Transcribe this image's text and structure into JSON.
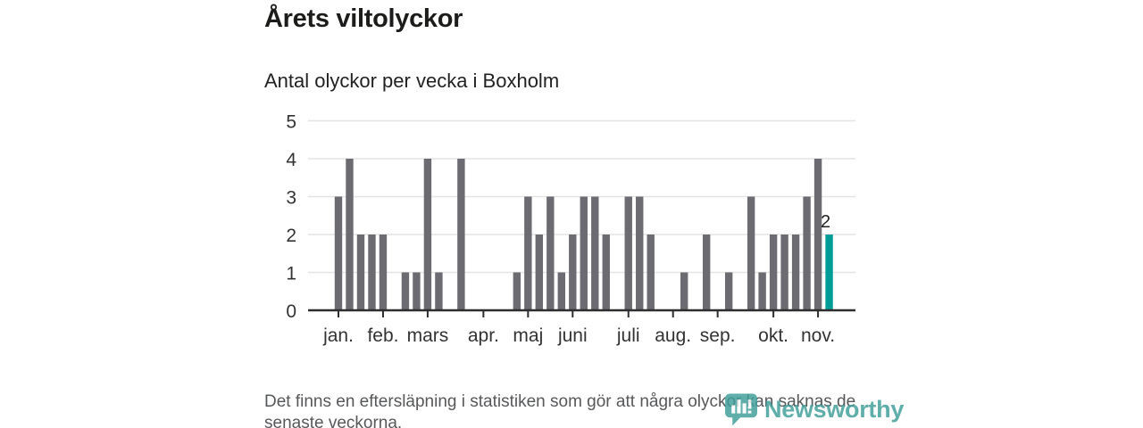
{
  "header": {
    "title": "Årets viltolyckor",
    "subtitle": "Antal olyckor per vecka i Boxholm"
  },
  "footer": {
    "note": "Det finns en eftersläpning i statistiken som gör att några olyckor kan saknas de senaste veckorna."
  },
  "brand": {
    "name": "Newsworthy",
    "icon": "newsworthy-bubble-chart-icon",
    "color": "#3f9e9a"
  },
  "chart_data": {
    "type": "bar",
    "title": "Årets viltolyckor",
    "subtitle": "Antal olyckor per vecka i Boxholm",
    "x_unit": "vecka (week of year)",
    "weeks": [
      1,
      2,
      3,
      4,
      5,
      6,
      7,
      8,
      9,
      10,
      11,
      12,
      13,
      14,
      15,
      16,
      17,
      18,
      19,
      20,
      21,
      22,
      23,
      24,
      25,
      26,
      27,
      28,
      29,
      30,
      31,
      32,
      33,
      34,
      35,
      36,
      37,
      38,
      39,
      40,
      41,
      42,
      43,
      44,
      45
    ],
    "values": [
      3,
      4,
      2,
      2,
      2,
      0,
      1,
      1,
      4,
      1,
      0,
      4,
      0,
      0,
      0,
      0,
      1,
      3,
      2,
      3,
      1,
      2,
      3,
      3,
      2,
      0,
      3,
      3,
      2,
      0,
      0,
      1,
      0,
      2,
      0,
      1,
      0,
      3,
      1,
      2,
      2,
      2,
      3,
      4,
      2
    ],
    "ylim": [
      0,
      5
    ],
    "yticks": [
      0,
      1,
      2,
      3,
      4,
      5
    ],
    "axis_weeks_total": 47,
    "grid": true,
    "legend": false,
    "month_ticks": [
      {
        "label": "jan.",
        "week": 1
      },
      {
        "label": "feb.",
        "week": 5
      },
      {
        "label": "mars",
        "week": 9
      },
      {
        "label": "apr.",
        "week": 14
      },
      {
        "label": "maj",
        "week": 18
      },
      {
        "label": "juni",
        "week": 22
      },
      {
        "label": "juli",
        "week": 27
      },
      {
        "label": "aug.",
        "week": 31
      },
      {
        "label": "sep.",
        "week": 35
      },
      {
        "label": "okt.",
        "week": 40
      },
      {
        "label": "nov.",
        "week": 44
      }
    ],
    "highlight": {
      "week": 45,
      "value": 2,
      "label": "2"
    },
    "colors": {
      "bar": "#6b6b71",
      "highlight": "#009c98",
      "grid": "#e4e4e4",
      "axis": "#2e2e2e",
      "text": "#333333",
      "label": "#222222"
    }
  }
}
